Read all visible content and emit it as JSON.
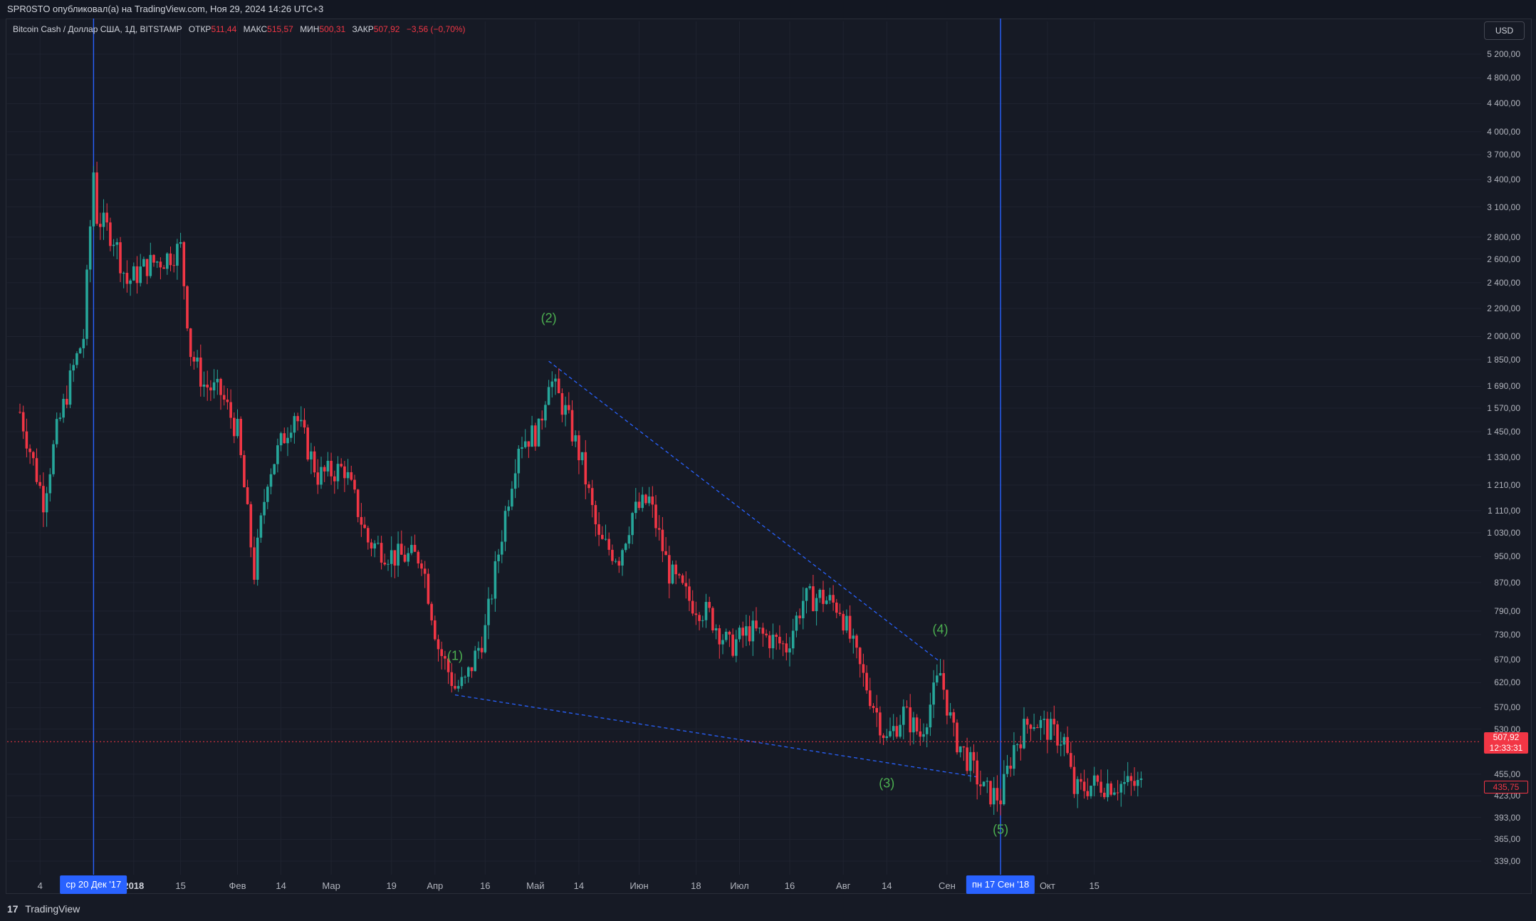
{
  "header": {
    "published": "SPR0STO опубликовал(а) на TradingView.com, Ноя 29, 2024 14:26 UTC+3"
  },
  "legend": {
    "symbol": "Bitcoin Cash / Доллар США, 1Д, BITSTAMP",
    "open_label": "ОТКР",
    "open": "511,44",
    "high_label": "МАКС",
    "high": "515,57",
    "low_label": "МИН",
    "low": "500,31",
    "close_label": "ЗАКР",
    "close": "507,92",
    "change": "−3,56 (−0,70%)"
  },
  "currency_button": "USD",
  "price_axis": [
    "5 200,00",
    "4 800,00",
    "4 400,00",
    "4 000,00",
    "3 700,00",
    "3 400,00",
    "3 100,00",
    "2 800,00",
    "2 600,00",
    "2 400,00",
    "2 200,00",
    "2 000,00",
    "1 850,00",
    "1 690,00",
    "1 570,00",
    "1 450,00",
    "1 330,00",
    "1 210,00",
    "1 110,00",
    "1 030,00",
    "950,00",
    "870,00",
    "790,00",
    "730,00",
    "670,00",
    "620,00",
    "570,00",
    "530,00",
    "455,00",
    "423,00",
    "393,00",
    "365,00",
    "339,00"
  ],
  "time_axis": {
    "labels": [
      {
        "text": "4",
        "bold": false
      },
      {
        "text": "2018",
        "bold": true
      },
      {
        "text": "15",
        "bold": false
      },
      {
        "text": "Фев",
        "bold": false
      },
      {
        "text": "14",
        "bold": false
      },
      {
        "text": "Мар",
        "bold": false
      },
      {
        "text": "19",
        "bold": false
      },
      {
        "text": "Апр",
        "bold": false
      },
      {
        "text": "16",
        "bold": false
      },
      {
        "text": "Май",
        "bold": false
      },
      {
        "text": "14",
        "bold": false
      },
      {
        "text": "Июн",
        "bold": false
      },
      {
        "text": "18",
        "bold": false
      },
      {
        "text": "Июл",
        "bold": false
      },
      {
        "text": "16",
        "bold": false
      },
      {
        "text": "Авг",
        "bold": false
      },
      {
        "text": "14",
        "bold": false
      },
      {
        "text": "Сен",
        "bold": false
      },
      {
        "text": "Окт",
        "bold": false
      },
      {
        "text": "15",
        "bold": false
      }
    ],
    "badges": [
      "ср 20 Дек '17",
      "пн 17 Сен '18"
    ]
  },
  "price_badges": {
    "current_price": "507,92",
    "countdown": "12:33:31",
    "last_price": "435,75"
  },
  "waves": [
    "(1)",
    "(2)",
    "(3)",
    "(4)",
    "(5)"
  ],
  "footer": {
    "brand": "TradingView"
  },
  "colors": {
    "background": "#161a25",
    "up": "#26a69a",
    "down": "#f23645",
    "vline": "#2962ff",
    "trendline": "#2962ff",
    "wave": "#4caf50"
  },
  "chart_data": {
    "type": "candlestick",
    "title": "Bitcoin Cash / Доллар США, 1Д, BITSTAMP",
    "y_scale": "log",
    "ylim": [
      320,
      5500
    ],
    "x_range": [
      "2017-11-28",
      "2018-10-29"
    ],
    "vertical_markers": [
      "2017-12-20",
      "2018-09-17"
    ],
    "trendlines": [
      {
        "from": [
          "2018-05-05",
          1840
        ],
        "to": [
          "2018-08-30",
          665
        ]
      },
      {
        "from": [
          "2018-04-07",
          595
        ],
        "to": [
          "2018-09-11",
          450
        ]
      }
    ],
    "wave_points": [
      {
        "label": "(1)",
        "date": "2018-04-07",
        "price": 595
      },
      {
        "label": "(2)",
        "date": "2018-05-05",
        "price": 1840
      },
      {
        "label": "(3)",
        "date": "2018-08-14",
        "price": 480
      },
      {
        "label": "(4)",
        "date": "2018-08-30",
        "price": 665
      },
      {
        "label": "(5)",
        "date": "2018-09-17",
        "price": 420
      }
    ],
    "current_price": 507.92,
    "last_price": 435.75,
    "anchors": [
      [
        "2017-11-28",
        1550
      ],
      [
        "2017-12-05",
        1150
      ],
      [
        "2017-12-09",
        1450
      ],
      [
        "2017-12-14",
        1800
      ],
      [
        "2017-12-17",
        2000
      ],
      [
        "2017-12-20",
        3500
      ],
      [
        "2017-12-21",
        3000
      ],
      [
        "2017-12-26",
        2800
      ],
      [
        "2017-12-30",
        2400
      ],
      [
        "2018-01-05",
        2550
      ],
      [
        "2018-01-10",
        2600
      ],
      [
        "2018-01-15",
        2700
      ],
      [
        "2018-01-18",
        1900
      ],
      [
        "2018-01-22",
        1700
      ],
      [
        "2018-01-27",
        1650
      ],
      [
        "2018-02-01",
        1450
      ],
      [
        "2018-02-06",
        900
      ],
      [
        "2018-02-10",
        1250
      ],
      [
        "2018-02-18",
        1550
      ],
      [
        "2018-02-25",
        1250
      ],
      [
        "2018-03-05",
        1280
      ],
      [
        "2018-03-12",
        1000
      ],
      [
        "2018-03-20",
        950
      ],
      [
        "2018-03-28",
        950
      ],
      [
        "2018-04-02",
        700
      ],
      [
        "2018-04-07",
        610
      ],
      [
        "2018-04-10",
        620
      ],
      [
        "2018-04-16",
        740
      ],
      [
        "2018-04-22",
        1100
      ],
      [
        "2018-04-26",
        1400
      ],
      [
        "2018-05-02",
        1450
      ],
      [
        "2018-05-05",
        1750
      ],
      [
        "2018-05-10",
        1550
      ],
      [
        "2018-05-15",
        1300
      ],
      [
        "2018-05-20",
        1000
      ],
      [
        "2018-05-26",
        950
      ],
      [
        "2018-05-30",
        1100
      ],
      [
        "2018-06-04",
        1150
      ],
      [
        "2018-06-10",
        900
      ],
      [
        "2018-06-16",
        820
      ],
      [
        "2018-06-22",
        780
      ],
      [
        "2018-06-28",
        700
      ],
      [
        "2018-07-04",
        740
      ],
      [
        "2018-07-10",
        720
      ],
      [
        "2018-07-15",
        700
      ],
      [
        "2018-07-20",
        820
      ],
      [
        "2018-07-25",
        830
      ],
      [
        "2018-07-31",
        800
      ],
      [
        "2018-08-06",
        650
      ],
      [
        "2018-08-11",
        560
      ],
      [
        "2018-08-14",
        510
      ],
      [
        "2018-08-19",
        560
      ],
      [
        "2018-08-24",
        520
      ],
      [
        "2018-08-30",
        640
      ],
      [
        "2018-09-03",
        520
      ],
      [
        "2018-09-08",
        470
      ],
      [
        "2018-09-12",
        430
      ],
      [
        "2018-09-17",
        420
      ],
      [
        "2018-09-21",
        500
      ],
      [
        "2018-09-26",
        550
      ],
      [
        "2018-10-01",
        530
      ],
      [
        "2018-10-06",
        510
      ],
      [
        "2018-10-09",
        430
      ],
      [
        "2018-10-15",
        440
      ],
      [
        "2018-10-22",
        440
      ],
      [
        "2018-10-29",
        438
      ]
    ]
  }
}
